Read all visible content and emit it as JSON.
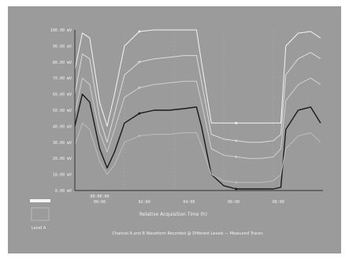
{
  "chart_data": {
    "type": "line",
    "title": "",
    "xlabel": "Relative Acquisition Time (h)",
    "ylabel": "",
    "caption": "Channel A and B Waveform Recorded @ Different Levels  — Measured Traces",
    "x_ticks": [
      "00:00",
      "02:00",
      "04:00",
      "06:00",
      "08:00"
    ],
    "x_ticks_sub": [
      "00:00:00"
    ],
    "y_ticks": [
      "100.00 mV",
      "90.00 mV",
      "80.00 mV",
      "70.00 mV",
      "60.00 mV",
      "50.00 mV",
      "40.00 mV",
      "30.00 mV",
      "20.00 mV",
      "10.00 mV",
      "0.00 mV"
    ],
    "ylim": [
      0,
      100
    ],
    "xlim": [
      0,
      10
    ],
    "grid": true,
    "legend_position": "bottom-left",
    "legend_label": "Level A",
    "series": [
      {
        "color": "#f5f5f5",
        "x": [
          0,
          0.3,
          0.6,
          1.0,
          1.3,
          1.6,
          2.0,
          2.6,
          3.2,
          3.8,
          4.4,
          4.9,
          5.1,
          5.5,
          6.0,
          6.5,
          7.0,
          7.5,
          8.0,
          8.3,
          8.5,
          9.0,
          9.5,
          9.9
        ],
        "y": [
          75,
          98,
          95,
          55,
          40,
          60,
          90,
          99,
          100,
          100,
          100,
          100,
          80,
          42,
          42,
          42,
          42,
          42,
          42,
          42,
          90,
          98,
          99,
          95
        ]
      },
      {
        "color": "#dcdcdc",
        "x": [
          0,
          0.3,
          0.6,
          1.0,
          1.3,
          1.6,
          2.0,
          2.6,
          3.2,
          3.8,
          4.4,
          4.9,
          5.1,
          5.5,
          6.0,
          6.5,
          7.0,
          7.5,
          8.0,
          8.3,
          8.5,
          9.0,
          9.5,
          9.9
        ],
        "y": [
          60,
          85,
          82,
          45,
          30,
          48,
          72,
          80,
          82,
          83,
          84,
          84,
          68,
          35,
          32,
          31,
          30,
          30,
          31,
          35,
          72,
          82,
          86,
          82
        ]
      },
      {
        "color": "#cfcfcf",
        "x": [
          0,
          0.3,
          0.6,
          1.0,
          1.3,
          1.6,
          2.0,
          2.6,
          3.2,
          3.8,
          4.4,
          4.9,
          5.1,
          5.5,
          6.0,
          6.5,
          7.0,
          7.5,
          8.0,
          8.3,
          8.5,
          9.0,
          9.5,
          9.9
        ],
        "y": [
          48,
          70,
          66,
          36,
          24,
          38,
          58,
          64,
          66,
          67,
          68,
          68,
          55,
          26,
          22,
          21,
          20,
          20,
          21,
          26,
          56,
          66,
          70,
          66
        ]
      },
      {
        "color": "#1a1a1a",
        "x": [
          0,
          0.3,
          0.6,
          1.0,
          1.3,
          1.6,
          2.0,
          2.6,
          3.2,
          3.8,
          4.4,
          4.9,
          5.1,
          5.5,
          6.0,
          6.5,
          7.0,
          7.5,
          8.0,
          8.3,
          8.5,
          9.0,
          9.5,
          9.9
        ],
        "y": [
          40,
          60,
          55,
          26,
          14,
          24,
          42,
          48,
          50,
          50,
          51,
          52,
          40,
          10,
          3,
          1,
          1,
          1,
          1,
          2,
          38,
          50,
          52,
          42
        ]
      },
      {
        "color": "#bdbdbd",
        "x": [
          0,
          0.3,
          0.6,
          1.0,
          1.3,
          1.6,
          2.0,
          2.6,
          3.2,
          3.8,
          4.4,
          4.9,
          5.1,
          5.5,
          6.0,
          6.5,
          7.0,
          7.5,
          8.0,
          8.3,
          8.5,
          9.0,
          9.5,
          9.9
        ],
        "y": [
          28,
          42,
          38,
          18,
          10,
          16,
          30,
          34,
          35,
          35,
          36,
          36,
          28,
          10,
          6,
          5,
          5,
          5,
          6,
          10,
          26,
          34,
          36,
          30
        ]
      }
    ]
  }
}
